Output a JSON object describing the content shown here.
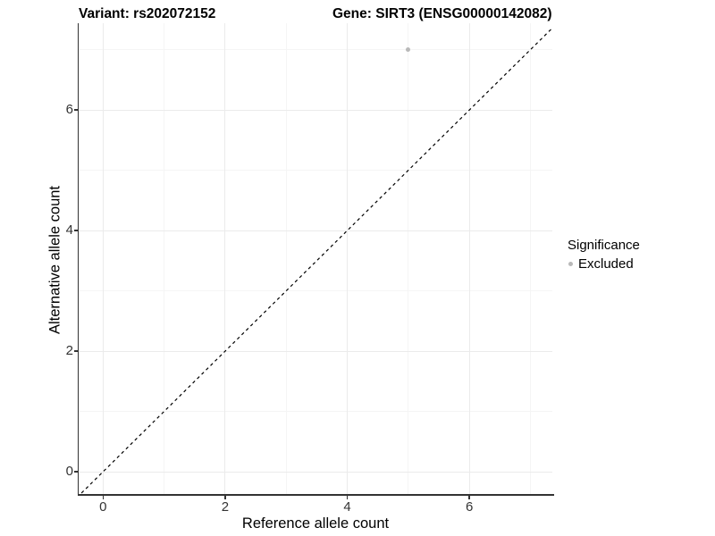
{
  "figure": {
    "title_left": "Variant: rs202072152",
    "title_right": "Gene: SIRT3 (ENSG00000142082)"
  },
  "chart_data": {
    "type": "scatter",
    "xlabel": "Reference allele count",
    "ylabel": "Alternative allele count",
    "xlim": [
      -0.4,
      7.36
    ],
    "ylim": [
      -0.37,
      7.44
    ],
    "x_major_ticks": [
      0,
      2,
      4,
      6
    ],
    "x_minor_ticks": [
      1,
      3,
      5,
      7
    ],
    "y_major_ticks": [
      0,
      2,
      4,
      6
    ],
    "y_minor_ticks": [
      1,
      3,
      5,
      7
    ],
    "grid": "major-and-minor",
    "points": [
      {
        "x": 5,
        "y": 7,
        "series": "Excluded"
      }
    ],
    "reference_line": {
      "equation": "y = x",
      "style": "dashed",
      "color": "#000000"
    },
    "legend": {
      "title": "Significance",
      "position": "right",
      "items": [
        {
          "label": "Excluded",
          "color": "#b9b9b9",
          "marker": "circle"
        }
      ]
    },
    "colors": {
      "point": "#b9b9b9",
      "grid_major": "#ebebeb",
      "grid_minor": "#f5f5f5",
      "axis_line": "#333333",
      "tick_text": "#333333",
      "background": "#ffffff"
    }
  }
}
